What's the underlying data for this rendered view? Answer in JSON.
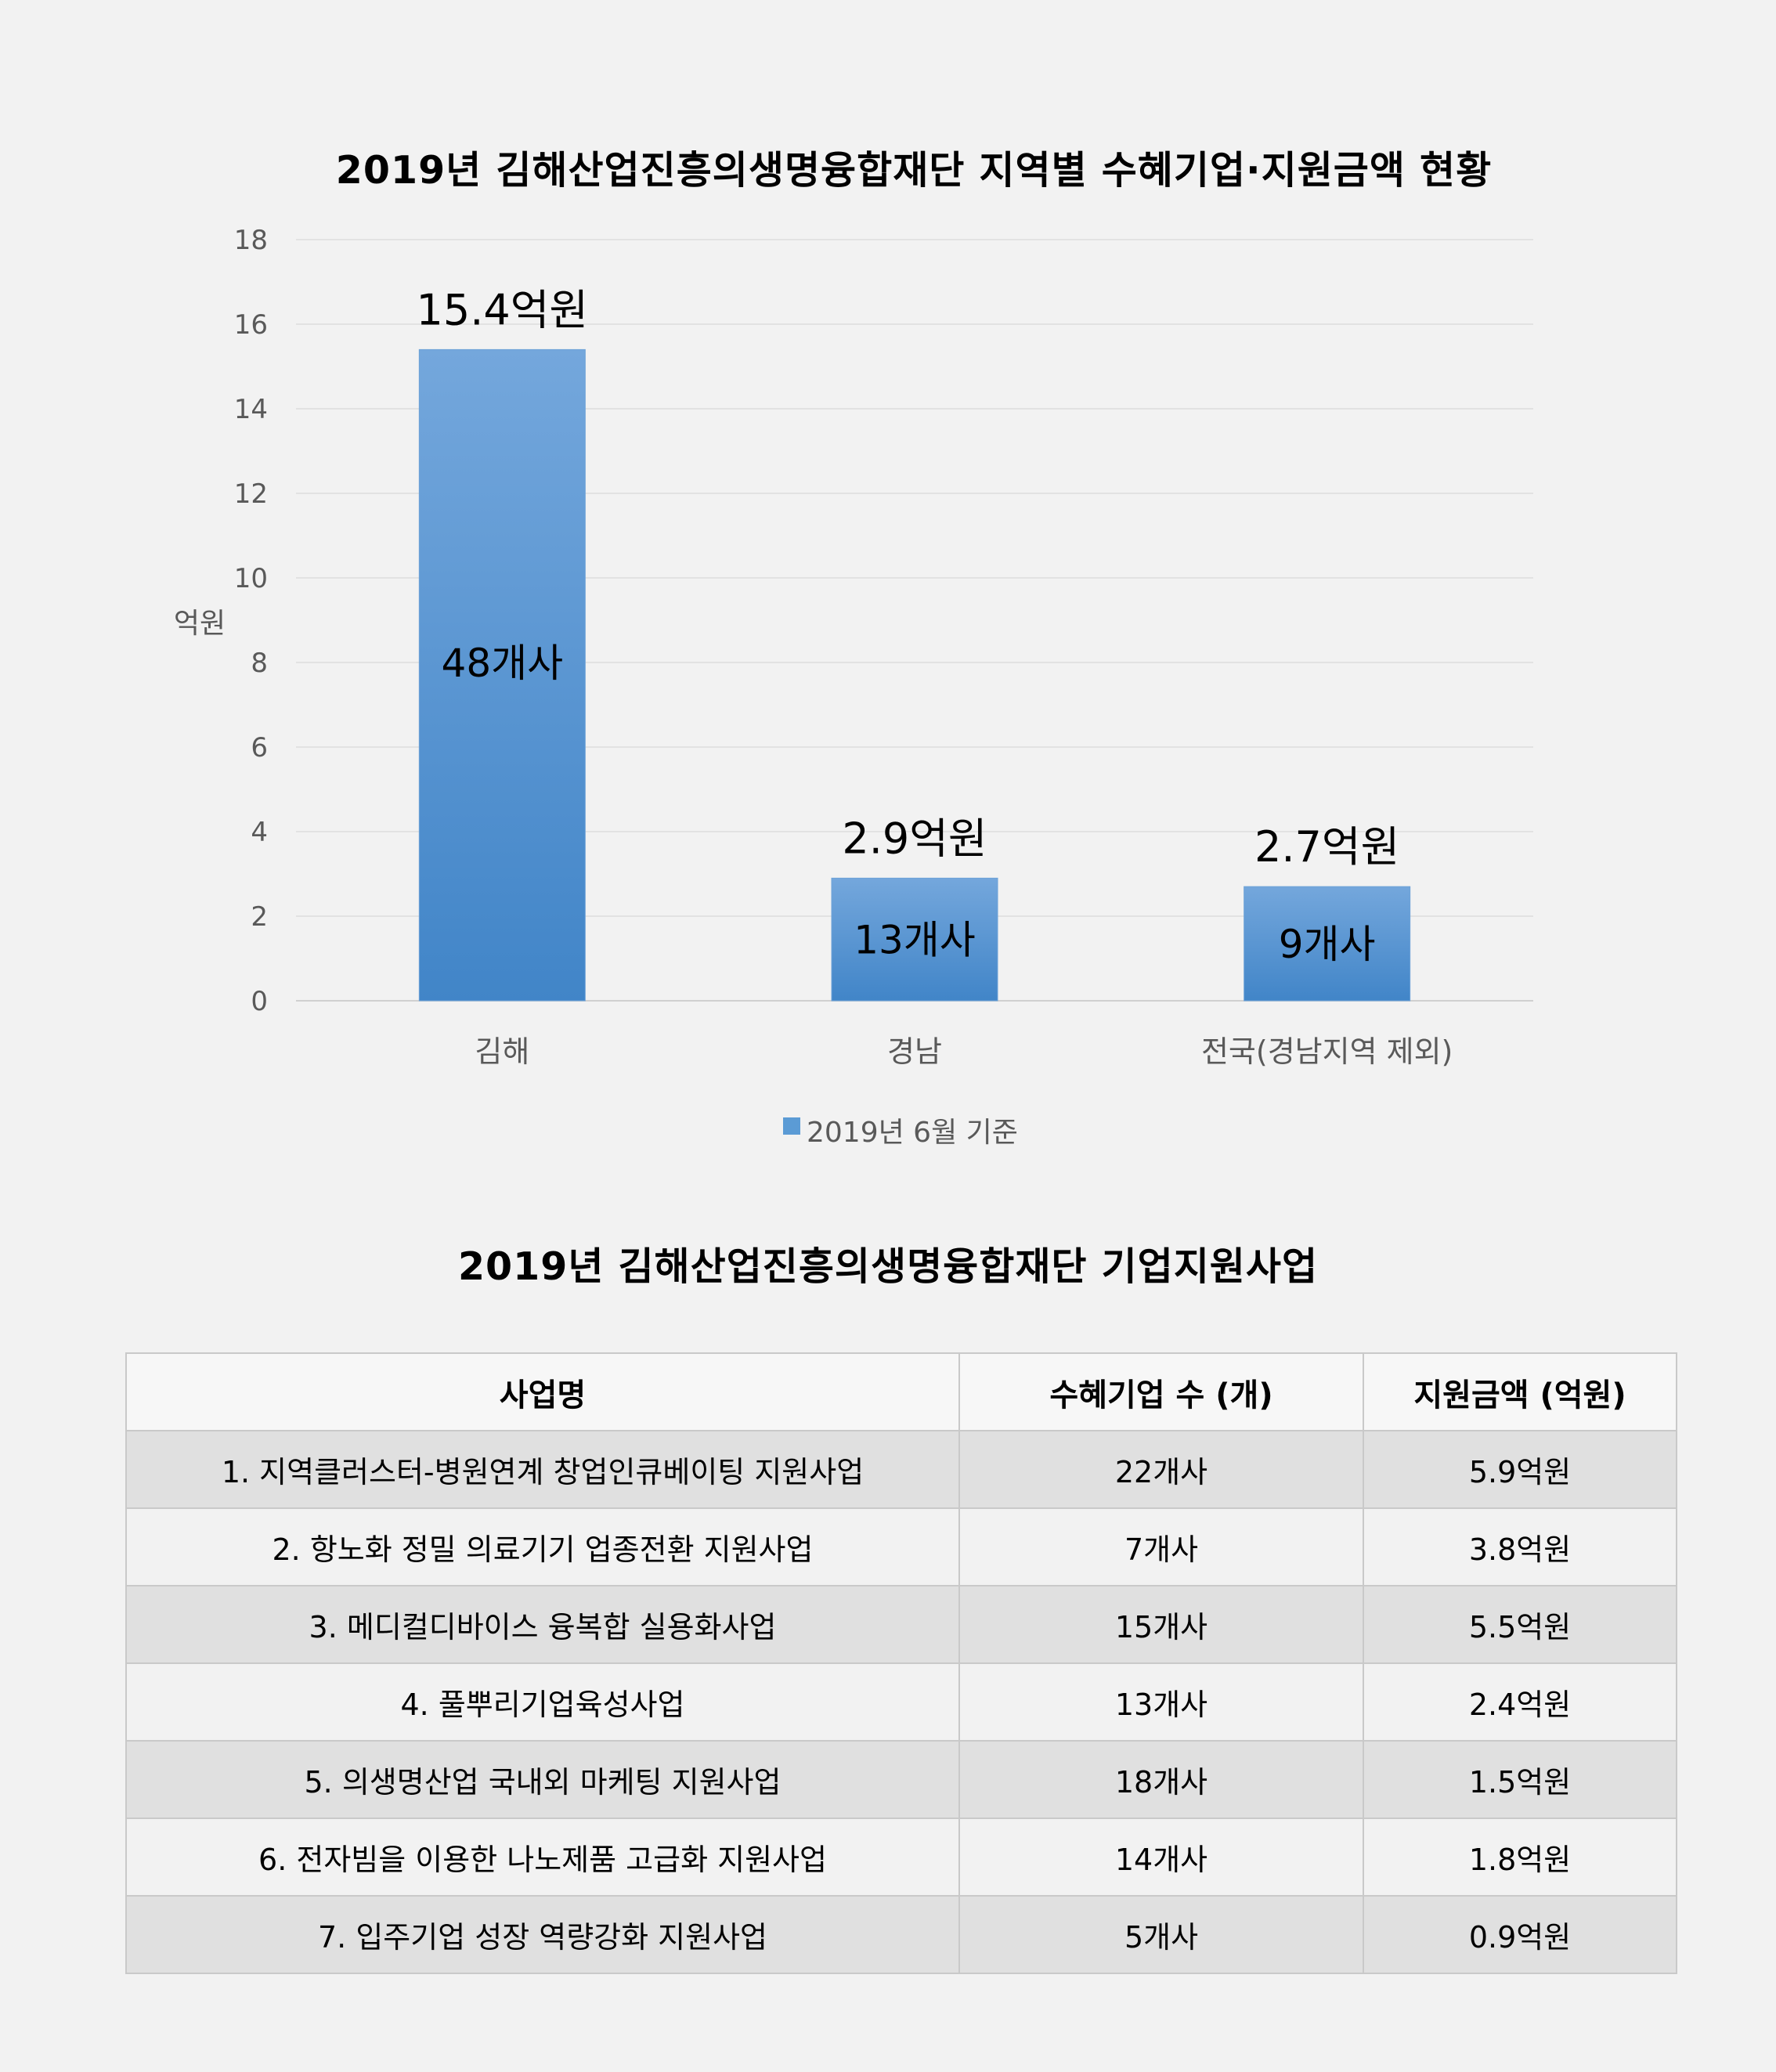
{
  "chart_data": {
    "type": "bar",
    "title": "2019년 김해산업진흥의생명융합재단 지역별 수혜기업·지원금액 현황",
    "ylabel": "억원",
    "xlabel": "",
    "ylim": [
      0,
      18
    ],
    "yticks": [
      0,
      2,
      4,
      6,
      8,
      10,
      12,
      14,
      16,
      18
    ],
    "categories": [
      "김해",
      "경남",
      "전국(경남지역 제외)"
    ],
    "series": [
      {
        "name": "2019년 6월 기준",
        "values": [
          15.4,
          2.9,
          2.7
        ],
        "value_labels": [
          "15.4억원",
          "2.9억원",
          "2.7억원"
        ],
        "inner_labels": [
          "48개사",
          "13개사",
          "9개사"
        ]
      }
    ],
    "grid": true,
    "legend_position": "bottom",
    "bar_color": "#5b9bd5",
    "bar_color_dark": "#4185c8"
  },
  "table": {
    "title": "2019년 김해산업진흥의생명융합재단 기업지원사업",
    "headers": [
      "사업명",
      "수혜기업 수 (개)",
      "지원금액 (억원)"
    ],
    "rows": [
      [
        "1. 지역클러스터-병원연계 창업인큐베이팅 지원사업",
        "22개사",
        "5.9억원"
      ],
      [
        "2. 항노화 정밀 의료기기 업종전환 지원사업",
        "7개사",
        "3.8억원"
      ],
      [
        "3. 메디컬디바이스 융복합 실용화사업",
        "15개사",
        "5.5억원"
      ],
      [
        "4. 풀뿌리기업육성사업",
        "13개사",
        "2.4억원"
      ],
      [
        "5. 의생명산업 국내외 마케팅 지원사업",
        "18개사",
        "1.5억원"
      ],
      [
        "6. 전자빔을 이용한 나노제품 고급화 지원사업",
        "14개사",
        "1.8억원"
      ],
      [
        "7. 입주기업 성장 역량강화 지원사업",
        "5개사",
        "0.9억원"
      ]
    ]
  }
}
